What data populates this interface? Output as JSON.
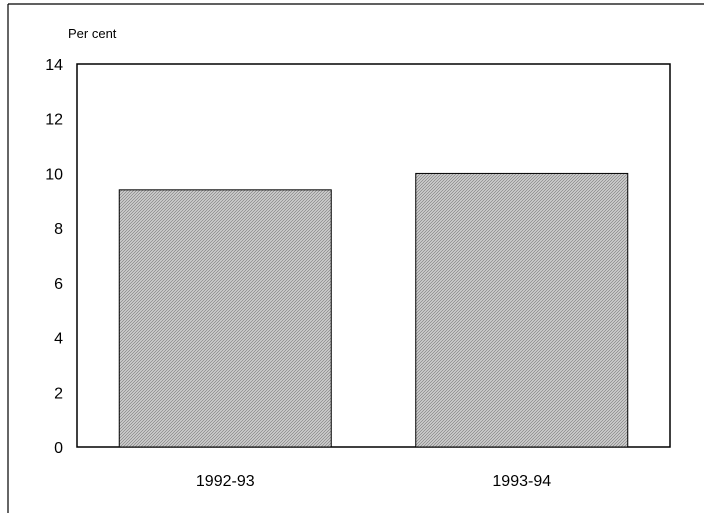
{
  "chart_data": {
    "type": "bar",
    "title": "",
    "ylabel": "Per cent",
    "xlabel": "",
    "categories": [
      "1992-93",
      "1993-94"
    ],
    "values": [
      9.4,
      10.0
    ],
    "ylim": [
      0,
      14
    ],
    "yticks": [
      0,
      2,
      4,
      6,
      8,
      10,
      12,
      14
    ],
    "grid": false,
    "legend": "none",
    "bar_fill": "#d4d4d4",
    "bar_hatch": "#8a8a8a",
    "bar_stroke": "#000000"
  }
}
